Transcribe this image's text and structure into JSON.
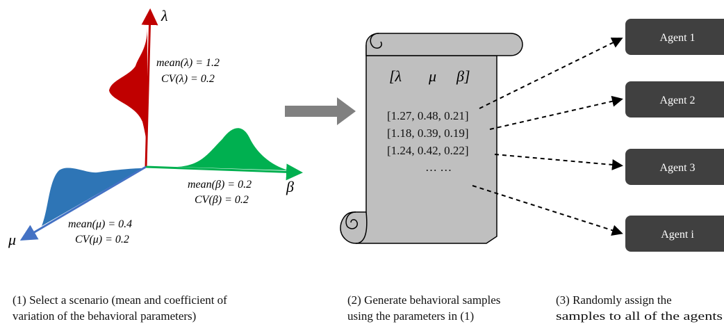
{
  "axes": {
    "lambda": "λ",
    "beta": "β",
    "mu": "μ"
  },
  "distributions": [
    {
      "mean": "mean(λ) = 1.2",
      "cv": "CV(λ) = 0.2"
    },
    {
      "mean": "mean(β) = 0.2",
      "cv": "CV(β) = 0.2"
    },
    {
      "mean": "mean(μ) = 0.4",
      "cv": "CV(μ) = 0.2"
    }
  ],
  "scroll": {
    "header": [
      "[λ",
      "μ",
      "β]"
    ],
    "rows": [
      "[1.27, 0.48, 0.21]",
      "[1.18, 0.39, 0.19]",
      "[1.24, 0.42, 0.22]",
      "… …"
    ]
  },
  "agents": [
    "Agent 1",
    "Agent 2",
    "Agent 3",
    "Agent i"
  ],
  "captions": [
    [
      "(1) Select a scenario (mean and coefficient of",
      "variation of the behavioral parameters)"
    ],
    [
      "(2) Generate behavioral samples",
      "using the parameters in (1)"
    ],
    [
      "(3) Randomly assign the",
      "samples to all of the agents"
    ]
  ]
}
